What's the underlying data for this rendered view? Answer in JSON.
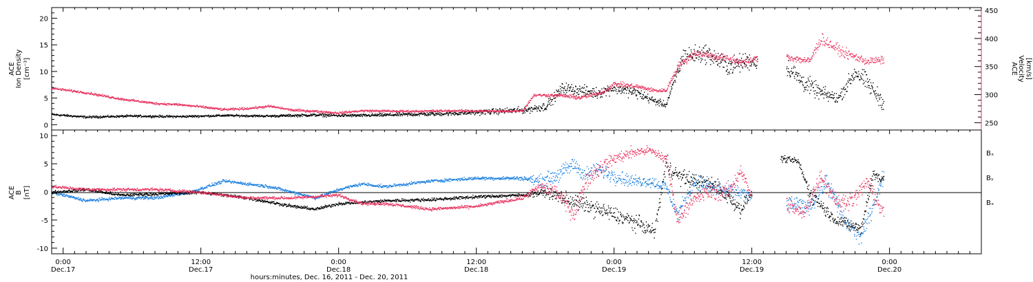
{
  "colors": {
    "black": "#000000",
    "pink": "#e8335f",
    "blue": "#1a7fe0"
  },
  "xlabel": "hours:minutes, Dec. 16, 2011 - Dec. 20, 2011",
  "xticks": [
    {
      "hour": 0,
      "time": "0:00",
      "date": "Dec.17"
    },
    {
      "hour": 12,
      "time": "12:00",
      "date": "Dec.17"
    },
    {
      "hour": 24,
      "time": "0:00",
      "date": "Dec.18"
    },
    {
      "hour": 36,
      "time": "12:00",
      "date": "Dec.18"
    },
    {
      "hour": 48,
      "time": "0:00",
      "date": "Dec.19"
    },
    {
      "hour": 60,
      "time": "12:00",
      "date": "Dec.19"
    },
    {
      "hour": 72,
      "time": "0:00",
      "date": "Dec.20"
    }
  ],
  "chart_data": [
    {
      "type": "scatter",
      "panel": "top",
      "xlim": [
        -1,
        80
      ],
      "ylabel_left": [
        "ACE",
        "Ion Density",
        "[cm⁻³]"
      ],
      "ylabel_right": [
        "ACE",
        "Velocity",
        "[km/s]"
      ],
      "ylim_left": [
        -1,
        22
      ],
      "yticks_left": [
        "0",
        "5",
        "10",
        "15",
        "20"
      ],
      "ylim_right": [
        237,
        455
      ],
      "yticks_right": [
        "250",
        "300",
        "350",
        "400",
        "450"
      ],
      "series": [
        {
          "color": "black",
          "axis": "left",
          "x": [
            -1,
            2,
            6,
            10,
            14,
            18,
            22,
            24,
            26,
            30,
            34,
            38,
            40,
            42,
            43.5,
            45,
            46.5,
            48,
            50,
            51.5,
            52.5,
            54,
            56,
            58,
            59.5,
            60.5,
            61.5,
            63,
            64.5,
            66,
            67.5,
            69,
            70,
            71.5
          ],
          "y": [
            2,
            1.5,
            1.7,
            1.6,
            1.8,
            1.7,
            1.9,
            1.8,
            1.8,
            2,
            2.2,
            2.6,
            2.8,
            3.5,
            7,
            6.5,
            6,
            7,
            6,
            4.5,
            3.8,
            13,
            13.5,
            11,
            12,
            12,
            null,
            11,
            8,
            6,
            5,
            10,
            8,
            4
          ],
          "spread": [
            0.3,
            0.3,
            0.3,
            0.3,
            0.3,
            0.3,
            0.4,
            0.4,
            0.4,
            0.5,
            0.6,
            0.8,
            0.9,
            1.2,
            1.5,
            1.5,
            1.5,
            1.5,
            1.5,
            1,
            0.8,
            2.5,
            2.5,
            2.5,
            2.5,
            2,
            0,
            2.5,
            2.5,
            2,
            1.5,
            2.5,
            2.5,
            2
          ]
        },
        {
          "color": "pink",
          "axis": "right",
          "x": [
            -1,
            2,
            5,
            8,
            10,
            12,
            14,
            16,
            18,
            20,
            22,
            24,
            26,
            30,
            34,
            38,
            40,
            41,
            43.5,
            45,
            47,
            48,
            50,
            51.5,
            52.5,
            53.5,
            55,
            57,
            59.5,
            60.5,
            61.5,
            63,
            65,
            66,
            68,
            70,
            71.5
          ],
          "y": [
            312,
            304,
            293,
            285,
            283,
            279,
            274,
            276,
            280,
            273,
            271,
            268,
            272,
            271,
            272,
            271,
            272,
            300,
            299,
            295,
            305,
            320,
            315,
            308,
            308,
            350,
            375,
            368,
            358,
            366,
            null,
            368,
            360,
            400,
            375,
            360,
            362
          ],
          "spread": [
            3,
            3,
            3,
            3,
            3,
            3,
            3,
            3,
            3,
            3,
            3,
            3,
            3,
            3,
            3,
            3,
            3,
            4,
            4,
            6,
            6,
            6,
            6,
            5,
            5,
            10,
            10,
            10,
            10,
            8,
            0,
            10,
            10,
            15,
            12,
            10,
            10
          ]
        }
      ]
    },
    {
      "type": "scatter",
      "panel": "bottom",
      "xlim": [
        -1,
        80
      ],
      "ylabel_left": [
        "ACE",
        "B",
        "[nT]"
      ],
      "ylim": [
        -11,
        11
      ],
      "yticks": [
        "-10",
        "-5",
        "0",
        "5",
        "10"
      ],
      "legend_placement": "right",
      "series": [
        {
          "name": "Bₓ",
          "color": "black",
          "x": [
            -1,
            2,
            5,
            8,
            12,
            16,
            20,
            22,
            24,
            26,
            28,
            32,
            36,
            40,
            42,
            43.5,
            45,
            46.5,
            48,
            50,
            51.5,
            52.5,
            53.5,
            55,
            57,
            59,
            60,
            61.5,
            62.5,
            64,
            65,
            67,
            68,
            69.5,
            70.5,
            71.5
          ],
          "y": [
            0,
            0.5,
            -0.5,
            -0.3,
            0,
            -1,
            -2.5,
            -3,
            -2,
            -1.8,
            -1.5,
            -1.3,
            -0.8,
            -0.5,
            0,
            -1,
            -2,
            -3,
            -4,
            -5.5,
            -7,
            5,
            3,
            2,
            1,
            -3,
            0,
            null,
            6,
            5.5,
            0,
            -4.5,
            -5.5,
            -6.5,
            3,
            2.5
          ],
          "spread": [
            0.4,
            0.4,
            0.4,
            0.4,
            0.4,
            0.4,
            0.4,
            0.4,
            0.4,
            0.4,
            0.4,
            0.4,
            0.4,
            0.4,
            1,
            2,
            2,
            2,
            2,
            2,
            1.5,
            2.5,
            2,
            2,
            2,
            2,
            1,
            0,
            0.8,
            0.8,
            2,
            1.5,
            1.5,
            1.5,
            2,
            1.5
          ]
        },
        {
          "name": "Bᵧ",
          "color": "blue",
          "x": [
            -1,
            2,
            5,
            8,
            11,
            14,
            16,
            18,
            20,
            22,
            24,
            26,
            28,
            32,
            36,
            40,
            41.5,
            43,
            44.5,
            45.5,
            46.5,
            48,
            49.5,
            51,
            52.5,
            53.5,
            55,
            57,
            59,
            60,
            61.5,
            63,
            65,
            66.5,
            68,
            69.5,
            71.5
          ],
          "y": [
            0,
            -1.5,
            -1,
            -1,
            0,
            2,
            1.5,
            1,
            0,
            -1,
            0.5,
            1.5,
            1,
            2,
            2.5,
            2.5,
            2,
            3,
            5,
            3,
            4,
            3,
            2,
            2,
            1,
            -4,
            2,
            0.5,
            0,
            -1,
            null,
            -2,
            -2.5,
            2,
            -5,
            -8,
            3
          ],
          "spread": [
            0.4,
            0.4,
            0.4,
            0.4,
            0.4,
            0.4,
            0.4,
            0.4,
            0.4,
            0.4,
            0.4,
            0.4,
            0.4,
            0.4,
            0.4,
            0.5,
            1.5,
            2,
            2,
            2,
            2,
            2,
            1.5,
            1.5,
            1.5,
            2,
            2,
            2,
            2,
            1.5,
            0,
            2,
            2,
            2.5,
            2,
            2,
            2
          ]
        },
        {
          "name": "Bₓ",
          "color": "pink",
          "x": [
            -1,
            2,
            5,
            8,
            12,
            16,
            20,
            24,
            26,
            28,
            32,
            36,
            40,
            41.5,
            43,
            44.5,
            45.5,
            46.5,
            48,
            49.5,
            51,
            52.5,
            53.5,
            54.5,
            56,
            58,
            59,
            60,
            61.5,
            63,
            64.5,
            66,
            67.5,
            69,
            70,
            71.5
          ],
          "y": [
            1,
            0.5,
            0.5,
            0.5,
            0,
            -1,
            -1,
            -0.5,
            -2,
            -2,
            -3,
            -2.5,
            -1,
            1,
            0,
            -4,
            2,
            4,
            6,
            7,
            7.5,
            6,
            -5,
            -2,
            0,
            0,
            4,
            -1,
            null,
            -2,
            -4,
            3,
            -2,
            -1,
            2,
            -4
          ],
          "spread": [
            0.4,
            0.4,
            0.4,
            0.4,
            0.4,
            0.4,
            0.4,
            0.4,
            0.4,
            0.4,
            0.4,
            0.4,
            0.5,
            1.5,
            2,
            2,
            2,
            2,
            1.5,
            1.5,
            1,
            1.5,
            2,
            2,
            2,
            2,
            1.5,
            1.5,
            0,
            2,
            2,
            2,
            2,
            2,
            2,
            2
          ]
        }
      ]
    }
  ]
}
